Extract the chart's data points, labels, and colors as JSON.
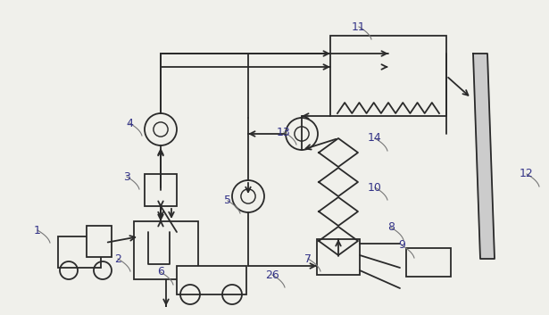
{
  "bg_color": "#f0f0eb",
  "line_color": "#2a2a2a",
  "label_color": "#333388",
  "figsize": [
    6.15,
    3.53
  ],
  "dpi": 100
}
